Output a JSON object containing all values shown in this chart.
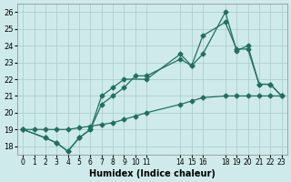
{
  "xlabel": "Humidex (Indice chaleur)",
  "xlim": [
    -0.5,
    23.5
  ],
  "ylim": [
    17.5,
    26.5
  ],
  "yticks": [
    18,
    19,
    20,
    21,
    22,
    23,
    24,
    25,
    26
  ],
  "xtick_positions": [
    0,
    1,
    2,
    3,
    4,
    5,
    6,
    7,
    8,
    9,
    10,
    11,
    14,
    15,
    16,
    18,
    19,
    20,
    21,
    22,
    23
  ],
  "xtick_labels": [
    "0",
    "1",
    "2",
    "3",
    "4",
    "5",
    "6",
    "7",
    "8",
    "9",
    "10",
    "11",
    "14",
    "15",
    "16",
    "18",
    "19",
    "20",
    "21",
    "22",
    "23"
  ],
  "line_color": "#207060",
  "bg_color": "#ceeaea",
  "grid_color": "#aacaca",
  "series": [
    {
      "x": [
        0,
        1,
        2,
        3,
        4,
        5,
        6,
        7,
        8,
        9,
        10,
        11,
        14,
        15,
        16,
        18,
        19,
        20,
        21,
        22,
        23
      ],
      "y": [
        19.0,
        19.0,
        19.0,
        19.0,
        19.0,
        19.1,
        19.2,
        19.3,
        19.4,
        19.6,
        19.8,
        20.0,
        20.5,
        20.7,
        20.9,
        21.0,
        21.0,
        21.0,
        21.0,
        21.0,
        21.0
      ]
    },
    {
      "x": [
        0,
        2,
        3,
        4,
        5,
        6,
        7,
        8,
        9,
        10,
        11,
        14,
        15,
        16,
        18,
        19,
        20,
        21,
        22,
        23
      ],
      "y": [
        19.0,
        18.5,
        18.2,
        17.7,
        18.5,
        19.0,
        20.5,
        21.0,
        21.5,
        22.2,
        22.2,
        23.2,
        22.8,
        23.5,
        26.0,
        23.7,
        24.0,
        21.7,
        21.7,
        21.0
      ]
    },
    {
      "x": [
        0,
        2,
        3,
        4,
        5,
        6,
        7,
        8,
        9,
        11,
        14,
        15,
        16,
        18,
        19,
        20,
        21,
        22,
        23
      ],
      "y": [
        19.0,
        18.5,
        18.2,
        17.7,
        18.5,
        19.0,
        21.0,
        21.5,
        22.0,
        22.0,
        23.5,
        22.8,
        24.6,
        25.4,
        23.8,
        23.8,
        21.7,
        21.7,
        21.0
      ]
    }
  ]
}
